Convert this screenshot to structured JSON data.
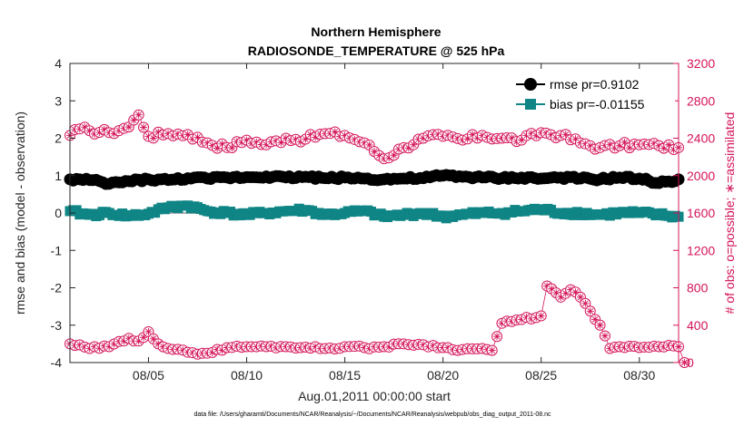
{
  "colors": {
    "rmse": "#000000",
    "bias": "#0f8585",
    "obs": "#d4145a",
    "zero_line": "#b0b0b0",
    "frame": "#262626"
  },
  "chart_data": {
    "type": "line",
    "title": "Northern Hemisphere",
    "subtitle": "RADIOSONDE_TEMPERATURE @ 525 hPa",
    "xlabel": "Aug.01,2011 00:00:00 start",
    "ylabel_left": "rmse and bias (model - observation)",
    "ylabel_right": "# of obs: o=possible; ∗=assimilated",
    "footnote": "data file: /Users/gharamti/Documents/NCAR/Reanalysis/~/Documents/NCAR/Reanalysis/webpub/obs_diag_output_2011-08.nc",
    "xlim": [
      1,
      32
    ],
    "ylim_left": [
      -4,
      4
    ],
    "ylim_right": [
      0,
      3200
    ],
    "x_ticks": [
      5,
      10,
      15,
      20,
      25,
      30
    ],
    "x_tick_labels": [
      "08/05",
      "08/10",
      "08/15",
      "08/20",
      "08/25",
      "08/30"
    ],
    "y_left_ticks": [
      4,
      3,
      2,
      1,
      0,
      -1,
      -2,
      -3,
      -4
    ],
    "y_left_tick_labels": [
      "4",
      "3",
      "2",
      "1",
      "0",
      "-1",
      "-2",
      "-3",
      "-4"
    ],
    "y_right_ticks": [
      3200,
      2800,
      2400,
      2000,
      1600,
      1200,
      800,
      400,
      0
    ],
    "y_right_tick_labels": [
      "3200",
      "2800",
      "2400",
      "2000",
      "1600",
      "1200",
      "800",
      "400",
      "0"
    ],
    "legend": [
      {
        "name": "rmse pr=0.9102",
        "series": "rmse"
      },
      {
        "name": "bias pr=-0.01155",
        "series": "bias"
      }
    ],
    "legend_position": "top-right",
    "series": [
      {
        "name": "rmse",
        "axis": "left",
        "marker": "circle",
        "anchors": [
          [
            1,
            0.9
          ],
          [
            2,
            0.88
          ],
          [
            3,
            0.78
          ],
          [
            4,
            0.85
          ],
          [
            5,
            0.9
          ],
          [
            6,
            0.88
          ],
          [
            7,
            0.93
          ],
          [
            8,
            0.92
          ],
          [
            9,
            0.95
          ],
          [
            10,
            0.96
          ],
          [
            11,
            0.98
          ],
          [
            12,
            0.95
          ],
          [
            13,
            0.97
          ],
          [
            14,
            0.93
          ],
          [
            15,
            0.95
          ],
          [
            16,
            0.92
          ],
          [
            17,
            0.9
          ],
          [
            18,
            0.92
          ],
          [
            19,
            0.93
          ],
          [
            20,
            1.0
          ],
          [
            21,
            0.97
          ],
          [
            22,
            0.95
          ],
          [
            23,
            0.93
          ],
          [
            24,
            0.95
          ],
          [
            25,
            0.92
          ],
          [
            26,
            0.95
          ],
          [
            27,
            0.92
          ],
          [
            28,
            0.9
          ],
          [
            29,
            0.95
          ],
          [
            30,
            0.92
          ],
          [
            31,
            0.8
          ],
          [
            32,
            0.9
          ]
        ]
      },
      {
        "name": "bias",
        "axis": "left",
        "marker": "square",
        "anchors": [
          [
            1,
            0.05
          ],
          [
            2,
            -0.05
          ],
          [
            3,
            0.0
          ],
          [
            4,
            -0.08
          ],
          [
            5,
            -0.02
          ],
          [
            6,
            0.15
          ],
          [
            7,
            0.2
          ],
          [
            8,
            0.05
          ],
          [
            9,
            0.0
          ],
          [
            10,
            -0.05
          ],
          [
            11,
            0.0
          ],
          [
            12,
            0.05
          ],
          [
            13,
            0.08
          ],
          [
            14,
            -0.05
          ],
          [
            15,
            0.0
          ],
          [
            16,
            0.05
          ],
          [
            17,
            -0.1
          ],
          [
            18,
            -0.05
          ],
          [
            19,
            0.0
          ],
          [
            20,
            -0.1
          ],
          [
            21,
            -0.05
          ],
          [
            22,
            0.0
          ],
          [
            23,
            0.0
          ],
          [
            24,
            0.05
          ],
          [
            25,
            0.1
          ],
          [
            26,
            0.0
          ],
          [
            27,
            0.0
          ],
          [
            28,
            -0.05
          ],
          [
            29,
            0.0
          ],
          [
            30,
            0.0
          ],
          [
            31,
            -0.05
          ],
          [
            32,
            -0.1
          ]
        ]
      },
      {
        "name": "obs_possible",
        "axis": "right",
        "marker": "circle-open",
        "anchors": [
          [
            1,
            2430
          ],
          [
            1.5,
            2500
          ],
          [
            2,
            2480
          ],
          [
            3,
            2460
          ],
          [
            4,
            2520
          ],
          [
            4.5,
            2650
          ],
          [
            5,
            2420
          ],
          [
            6,
            2450
          ],
          [
            7,
            2440
          ],
          [
            8,
            2350
          ],
          [
            9,
            2300
          ],
          [
            10,
            2380
          ],
          [
            11,
            2330
          ],
          [
            12,
            2400
          ],
          [
            13,
            2390
          ],
          [
            14,
            2450
          ],
          [
            15,
            2430
          ],
          [
            16,
            2350
          ],
          [
            17,
            2180
          ],
          [
            18,
            2300
          ],
          [
            19,
            2400
          ],
          [
            20,
            2420
          ],
          [
            21,
            2380
          ],
          [
            22,
            2430
          ],
          [
            23,
            2400
          ],
          [
            24,
            2380
          ],
          [
            25,
            2460
          ],
          [
            26,
            2430
          ],
          [
            27,
            2350
          ],
          [
            28,
            2300
          ],
          [
            29,
            2320
          ],
          [
            30,
            2330
          ],
          [
            31,
            2320
          ],
          [
            32,
            2300
          ]
        ]
      },
      {
        "name": "obs_assimilated",
        "axis": "right",
        "marker": "asterisk",
        "anchors": [
          [
            1,
            2410
          ],
          [
            2,
            2460
          ],
          [
            3,
            2450
          ],
          [
            4,
            2500
          ],
          [
            5,
            2400
          ],
          [
            6,
            2430
          ],
          [
            7,
            2420
          ],
          [
            8,
            2330
          ],
          [
            9,
            2280
          ],
          [
            10,
            2360
          ],
          [
            11,
            2310
          ],
          [
            12,
            2390
          ],
          [
            13,
            2370
          ],
          [
            14,
            2430
          ],
          [
            15,
            2410
          ],
          [
            16,
            2330
          ],
          [
            17,
            2160
          ],
          [
            18,
            2280
          ],
          [
            19,
            2380
          ],
          [
            20,
            2400
          ],
          [
            21,
            2360
          ],
          [
            22,
            2410
          ],
          [
            23,
            2380
          ],
          [
            24,
            2360
          ],
          [
            25,
            2440
          ],
          [
            26,
            2410
          ],
          [
            27,
            2330
          ],
          [
            28,
            2280
          ],
          [
            29,
            2300
          ],
          [
            30,
            2310
          ],
          [
            31,
            2300
          ],
          [
            32,
            2280
          ]
        ]
      },
      {
        "name": "obs_bottom",
        "axis": "right",
        "marker": "circle-open",
        "anchors": [
          [
            1,
            200
          ],
          [
            2,
            150
          ],
          [
            3,
            170
          ],
          [
            4,
            260
          ],
          [
            4.5,
            230
          ],
          [
            5,
            330
          ],
          [
            5.5,
            200
          ],
          [
            6,
            150
          ],
          [
            7,
            110
          ],
          [
            8,
            100
          ],
          [
            9,
            160
          ],
          [
            10,
            170
          ],
          [
            11,
            170
          ],
          [
            12,
            170
          ],
          [
            13,
            165
          ],
          [
            14,
            150
          ],
          [
            15,
            170
          ],
          [
            16,
            160
          ],
          [
            17,
            170
          ],
          [
            18,
            200
          ],
          [
            19,
            190
          ],
          [
            20,
            160
          ],
          [
            21,
            140
          ],
          [
            22,
            150
          ],
          [
            22.5,
            130
          ],
          [
            23,
            420
          ],
          [
            24,
            460
          ],
          [
            25,
            500
          ],
          [
            25.3,
            820
          ],
          [
            26,
            700
          ],
          [
            26.5,
            780
          ],
          [
            27,
            700
          ],
          [
            27.5,
            550
          ],
          [
            28,
            400
          ],
          [
            28.5,
            150
          ],
          [
            29,
            170
          ],
          [
            30,
            160
          ],
          [
            31,
            170
          ],
          [
            32,
            170
          ],
          [
            32.3,
            0
          ]
        ]
      }
    ],
    "zero_line": 0
  }
}
